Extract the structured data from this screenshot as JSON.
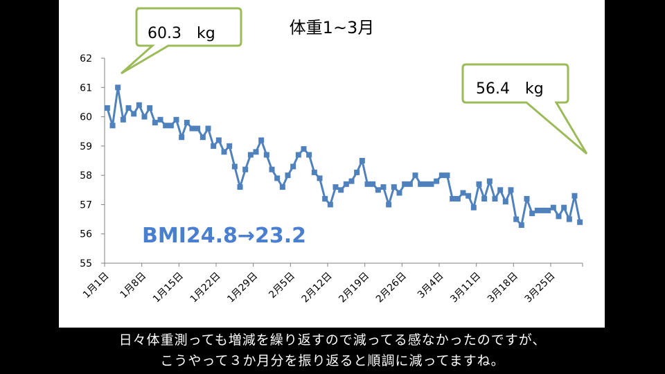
{
  "chart_data": {
    "type": "line",
    "title": "体重1~3月",
    "xlabel": "",
    "ylabel": "",
    "ylim": [
      55,
      62
    ],
    "yticks": [
      55,
      56,
      57,
      58,
      59,
      60,
      61,
      62
    ],
    "x_tick_labels": [
      "1月1日",
      "1月8日",
      "1月15日",
      "1月22日",
      "1月29日",
      "2月5日",
      "2月12日",
      "2月19日",
      "2月26日",
      "3月4日",
      "3月11日",
      "3月18日",
      "3月25日"
    ],
    "grid": false,
    "legend": "none",
    "line_color": "#4f81bd",
    "series": [
      {
        "values": [
          60.3,
          59.7,
          61.0,
          59.9,
          60.3,
          60.1,
          60.4,
          60.0,
          60.3,
          59.8,
          59.9,
          59.7,
          59.7,
          59.9,
          59.3,
          59.8,
          59.6,
          59.6,
          59.3,
          59.6,
          59.0,
          59.2,
          58.8,
          59.0,
          58.3,
          57.6,
          58.2,
          58.7,
          58.8,
          59.2,
          58.7,
          58.2,
          57.9,
          57.6,
          58.0,
          58.3,
          58.7,
          58.9,
          58.7,
          58.1,
          57.9,
          57.2,
          57.0,
          57.6,
          57.5,
          57.7,
          57.8,
          58.1,
          58.5,
          57.7,
          57.7,
          57.5,
          57.6,
          57.0,
          57.6,
          57.4,
          57.7,
          57.7,
          58.0,
          57.7,
          57.7,
          57.7,
          57.8,
          58.0,
          58.0,
          57.2,
          57.2,
          57.4,
          57.3,
          56.9,
          57.7,
          57.2,
          57.8,
          57.2,
          57.5,
          57.1,
          57.5,
          56.5,
          56.3,
          57.2,
          56.7,
          56.8,
          56.8,
          56.8,
          56.9,
          56.6,
          56.9,
          56.5,
          57.3,
          56.4
        ]
      }
    ]
  },
  "callouts": {
    "start": "60.3　kg",
    "end": "56.4　kg"
  },
  "bmi_label": "BMI24.8→23.2",
  "caption": {
    "line1": "日々体重測っても増減を繰り返すので減ってる感なかったのですが、",
    "line2": "こうやって３か月分を振り返ると順調に減ってますね。"
  },
  "colors": {
    "callout_border": "#9bbb59",
    "series": "#4f81bd"
  }
}
